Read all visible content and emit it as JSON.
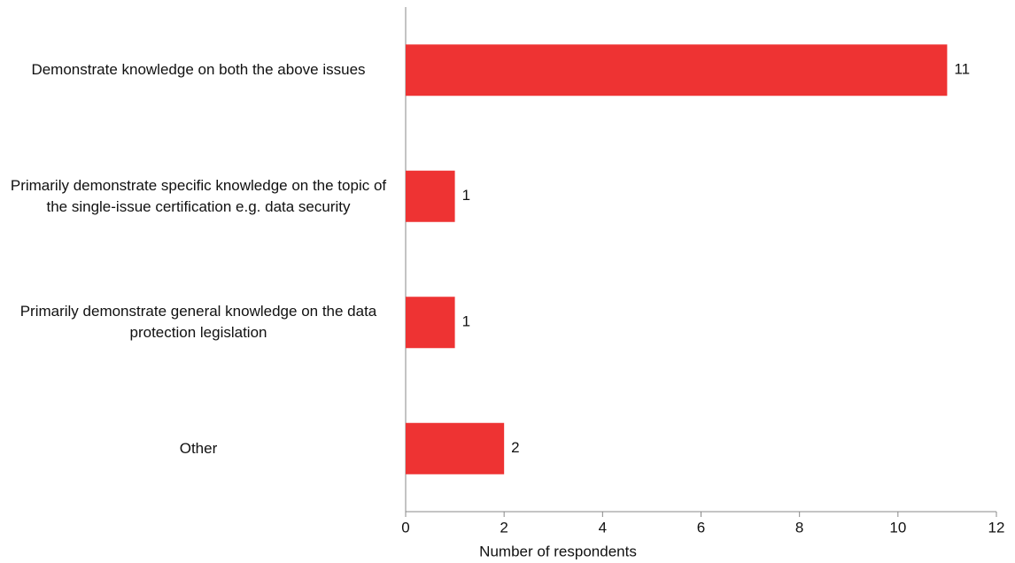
{
  "chart_data": {
    "type": "hbar",
    "categories": [
      "Demonstrate knowledge on both the above issues",
      "Primarily demonstrate specific knowledge on the topic of the single-issue certification e.g. data security",
      "Primarily demonstrate general knowledge on the data protection legislation",
      "Other"
    ],
    "values": [
      11,
      1,
      1,
      2
    ],
    "color": "#ee3333",
    "xlim": [
      0,
      12
    ],
    "xticks": [
      0,
      2,
      4,
      6,
      8,
      10,
      12
    ],
    "xlabel": "Number of respondents",
    "grid": false
  }
}
